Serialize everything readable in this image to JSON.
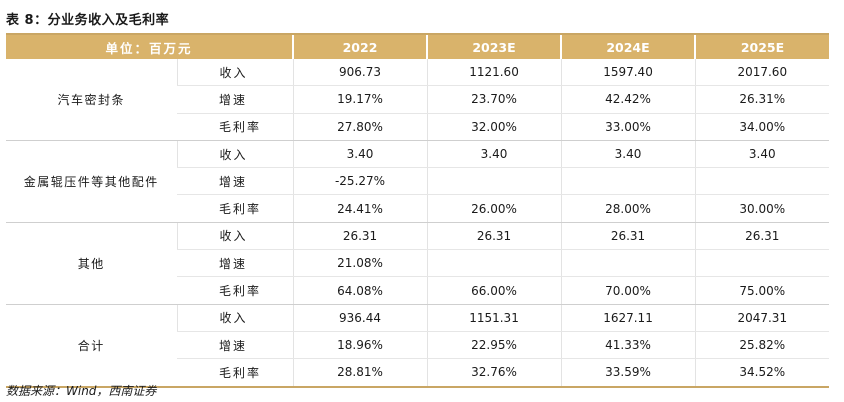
{
  "title": "表 8：分业务收入及毛利率",
  "header": {
    "unit": "单位：百万元",
    "years": [
      "2022",
      "2023E",
      "2024E",
      "2025E"
    ]
  },
  "groups": [
    {
      "name": "汽车密封条",
      "rows": [
        {
          "metric": "收入",
          "values": [
            "906.73",
            "1121.60",
            "1597.40",
            "2017.60"
          ]
        },
        {
          "metric": "增速",
          "values": [
            "19.17%",
            "23.70%",
            "42.42%",
            "26.31%"
          ]
        },
        {
          "metric": "毛利率",
          "values": [
            "27.80%",
            "32.00%",
            "33.00%",
            "34.00%"
          ]
        }
      ]
    },
    {
      "name": "金属辊压件等其他配件",
      "rows": [
        {
          "metric": "收入",
          "values": [
            "3.40",
            "3.40",
            "3.40",
            "3.40"
          ]
        },
        {
          "metric": "增速",
          "values": [
            "-25.27%",
            "",
            "",
            ""
          ]
        },
        {
          "metric": "毛利率",
          "values": [
            "24.41%",
            "26.00%",
            "28.00%",
            "30.00%"
          ]
        }
      ]
    },
    {
      "name": "其他",
      "rows": [
        {
          "metric": "收入",
          "values": [
            "26.31",
            "26.31",
            "26.31",
            "26.31"
          ]
        },
        {
          "metric": "增速",
          "values": [
            "21.08%",
            "",
            "",
            ""
          ]
        },
        {
          "metric": "毛利率",
          "values": [
            "64.08%",
            "66.00%",
            "70.00%",
            "75.00%"
          ]
        }
      ]
    },
    {
      "name": "合计",
      "rows": [
        {
          "metric": "收入",
          "values": [
            "936.44",
            "1151.31",
            "1627.11",
            "2047.31"
          ]
        },
        {
          "metric": "增速",
          "values": [
            "18.96%",
            "22.95%",
            "41.33%",
            "25.82%"
          ]
        },
        {
          "metric": "毛利率",
          "values": [
            "28.81%",
            "32.76%",
            "33.59%",
            "34.52%"
          ]
        }
      ]
    }
  ],
  "source": "数据来源：Wind，西南证券"
}
